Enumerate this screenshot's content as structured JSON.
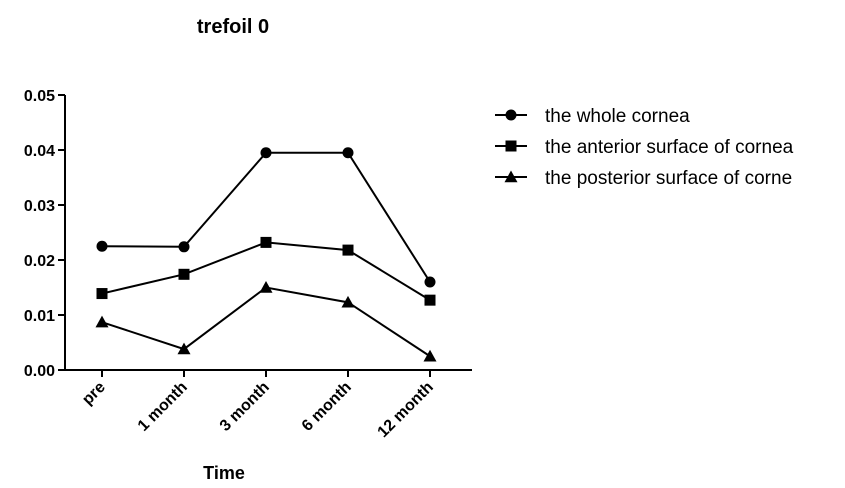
{
  "chart_data": {
    "type": "line",
    "title": "trefoil 0",
    "xlabel": "Time",
    "ylabel": "",
    "categories": [
      "pre",
      "1 month",
      "3 month",
      "6 month",
      "12 month"
    ],
    "ylim": [
      0,
      0.05
    ],
    "yticks": [
      "0.00",
      "0.01",
      "0.02",
      "0.03",
      "0.04",
      "0.05"
    ],
    "grid": false,
    "legend_position": "right",
    "series": [
      {
        "name": "the whole cornea",
        "marker": "circle",
        "values": [
          0.0225,
          0.0224,
          0.0395,
          0.0395,
          0.016
        ]
      },
      {
        "name": "the anterior surface of cornea",
        "marker": "square",
        "values": [
          0.0139,
          0.0174,
          0.0232,
          0.0218,
          0.0127
        ]
      },
      {
        "name": "the posterior surface of corne",
        "marker": "triangle",
        "values": [
          0.0087,
          0.0038,
          0.015,
          0.0123,
          0.0025
        ]
      }
    ]
  }
}
